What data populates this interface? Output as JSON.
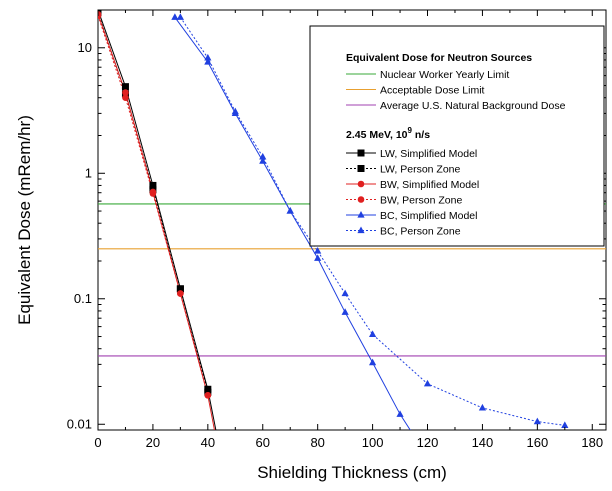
{
  "chart_data": {
    "type": "line",
    "title": "",
    "xlabel": "Shielding Thickness (cm)",
    "ylabel": "Equivalent Dose (mRem/hr)",
    "xlim": [
      0,
      185
    ],
    "ylim": [
      0.009,
      20
    ],
    "y_scale": "log",
    "x_ticks": [
      0,
      20,
      40,
      60,
      80,
      100,
      120,
      140,
      160,
      180
    ],
    "y_ticks": [
      0.01,
      0.1,
      1,
      10
    ],
    "x_tick_labels": [
      "0",
      "20",
      "40",
      "60",
      "80",
      "100",
      "120",
      "140",
      "160",
      "180"
    ],
    "y_tick_labels": [
      "0.01",
      "0.1",
      "1",
      "10"
    ],
    "grid": false,
    "legend_position": "top-right",
    "legend": {
      "title": "Equivalent Dose for Neutron Sources",
      "subtitle_main": "2.45 MeV, 10",
      "subtitle_sup": "9",
      "subtitle_unit": " n/s"
    },
    "reference_lines": [
      {
        "name": "Nuclear Worker Yearly Limit",
        "value": 0.57,
        "color": "#3aaa3a"
      },
      {
        "name": "Acceptable Dose Limit",
        "value": 0.25,
        "color": "#e8a030"
      },
      {
        "name": "Average U.S. Natural Background Dose",
        "value": 0.035,
        "color": "#a040b0"
      }
    ],
    "series": [
      {
        "name": "LW, Simplified Model",
        "color": "#000000",
        "dash": false,
        "marker": "square",
        "x": [
          0,
          10,
          20,
          30,
          40,
          43
        ],
        "y": [
          20,
          4.9,
          0.8,
          0.12,
          0.019,
          0.0088
        ]
      },
      {
        "name": "LW, Person Zone",
        "color": "#000000",
        "dash": true,
        "marker": "square",
        "x": [
          0,
          10,
          20,
          30,
          40
        ],
        "y": [
          19,
          4.3,
          0.74,
          0.12,
          0.018
        ]
      },
      {
        "name": "BW, Simplified Model",
        "color": "#e02020",
        "dash": false,
        "marker": "circle",
        "x": [
          0,
          10,
          20,
          30,
          40,
          42.5
        ],
        "y": [
          18.5,
          4.4,
          0.71,
          0.11,
          0.017,
          0.0088
        ]
      },
      {
        "name": "BW, Person Zone",
        "color": "#e02020",
        "dash": true,
        "marker": "circle",
        "x": [
          0,
          10,
          20,
          30,
          40
        ],
        "y": [
          18,
          4.0,
          0.69,
          0.11,
          0.017
        ]
      },
      {
        "name": "BC, Simplified Model",
        "color": "#2040e0",
        "dash": false,
        "marker": "triangle",
        "x": [
          28,
          40,
          50,
          60,
          70,
          80,
          90,
          100,
          110,
          114
        ],
        "y": [
          17.5,
          7.7,
          3.0,
          1.25,
          0.5,
          0.21,
          0.078,
          0.031,
          0.012,
          0.0088
        ]
      },
      {
        "name": "BC, Person Zone",
        "color": "#2040e0",
        "dash": true,
        "marker": "triangle",
        "x": [
          30,
          40,
          50,
          60,
          70,
          80,
          90,
          100,
          120,
          140,
          160,
          170
        ],
        "y": [
          17.5,
          8.3,
          3.1,
          1.35,
          0.5,
          0.24,
          0.11,
          0.052,
          0.021,
          0.0135,
          0.0105,
          0.0098
        ]
      }
    ]
  }
}
